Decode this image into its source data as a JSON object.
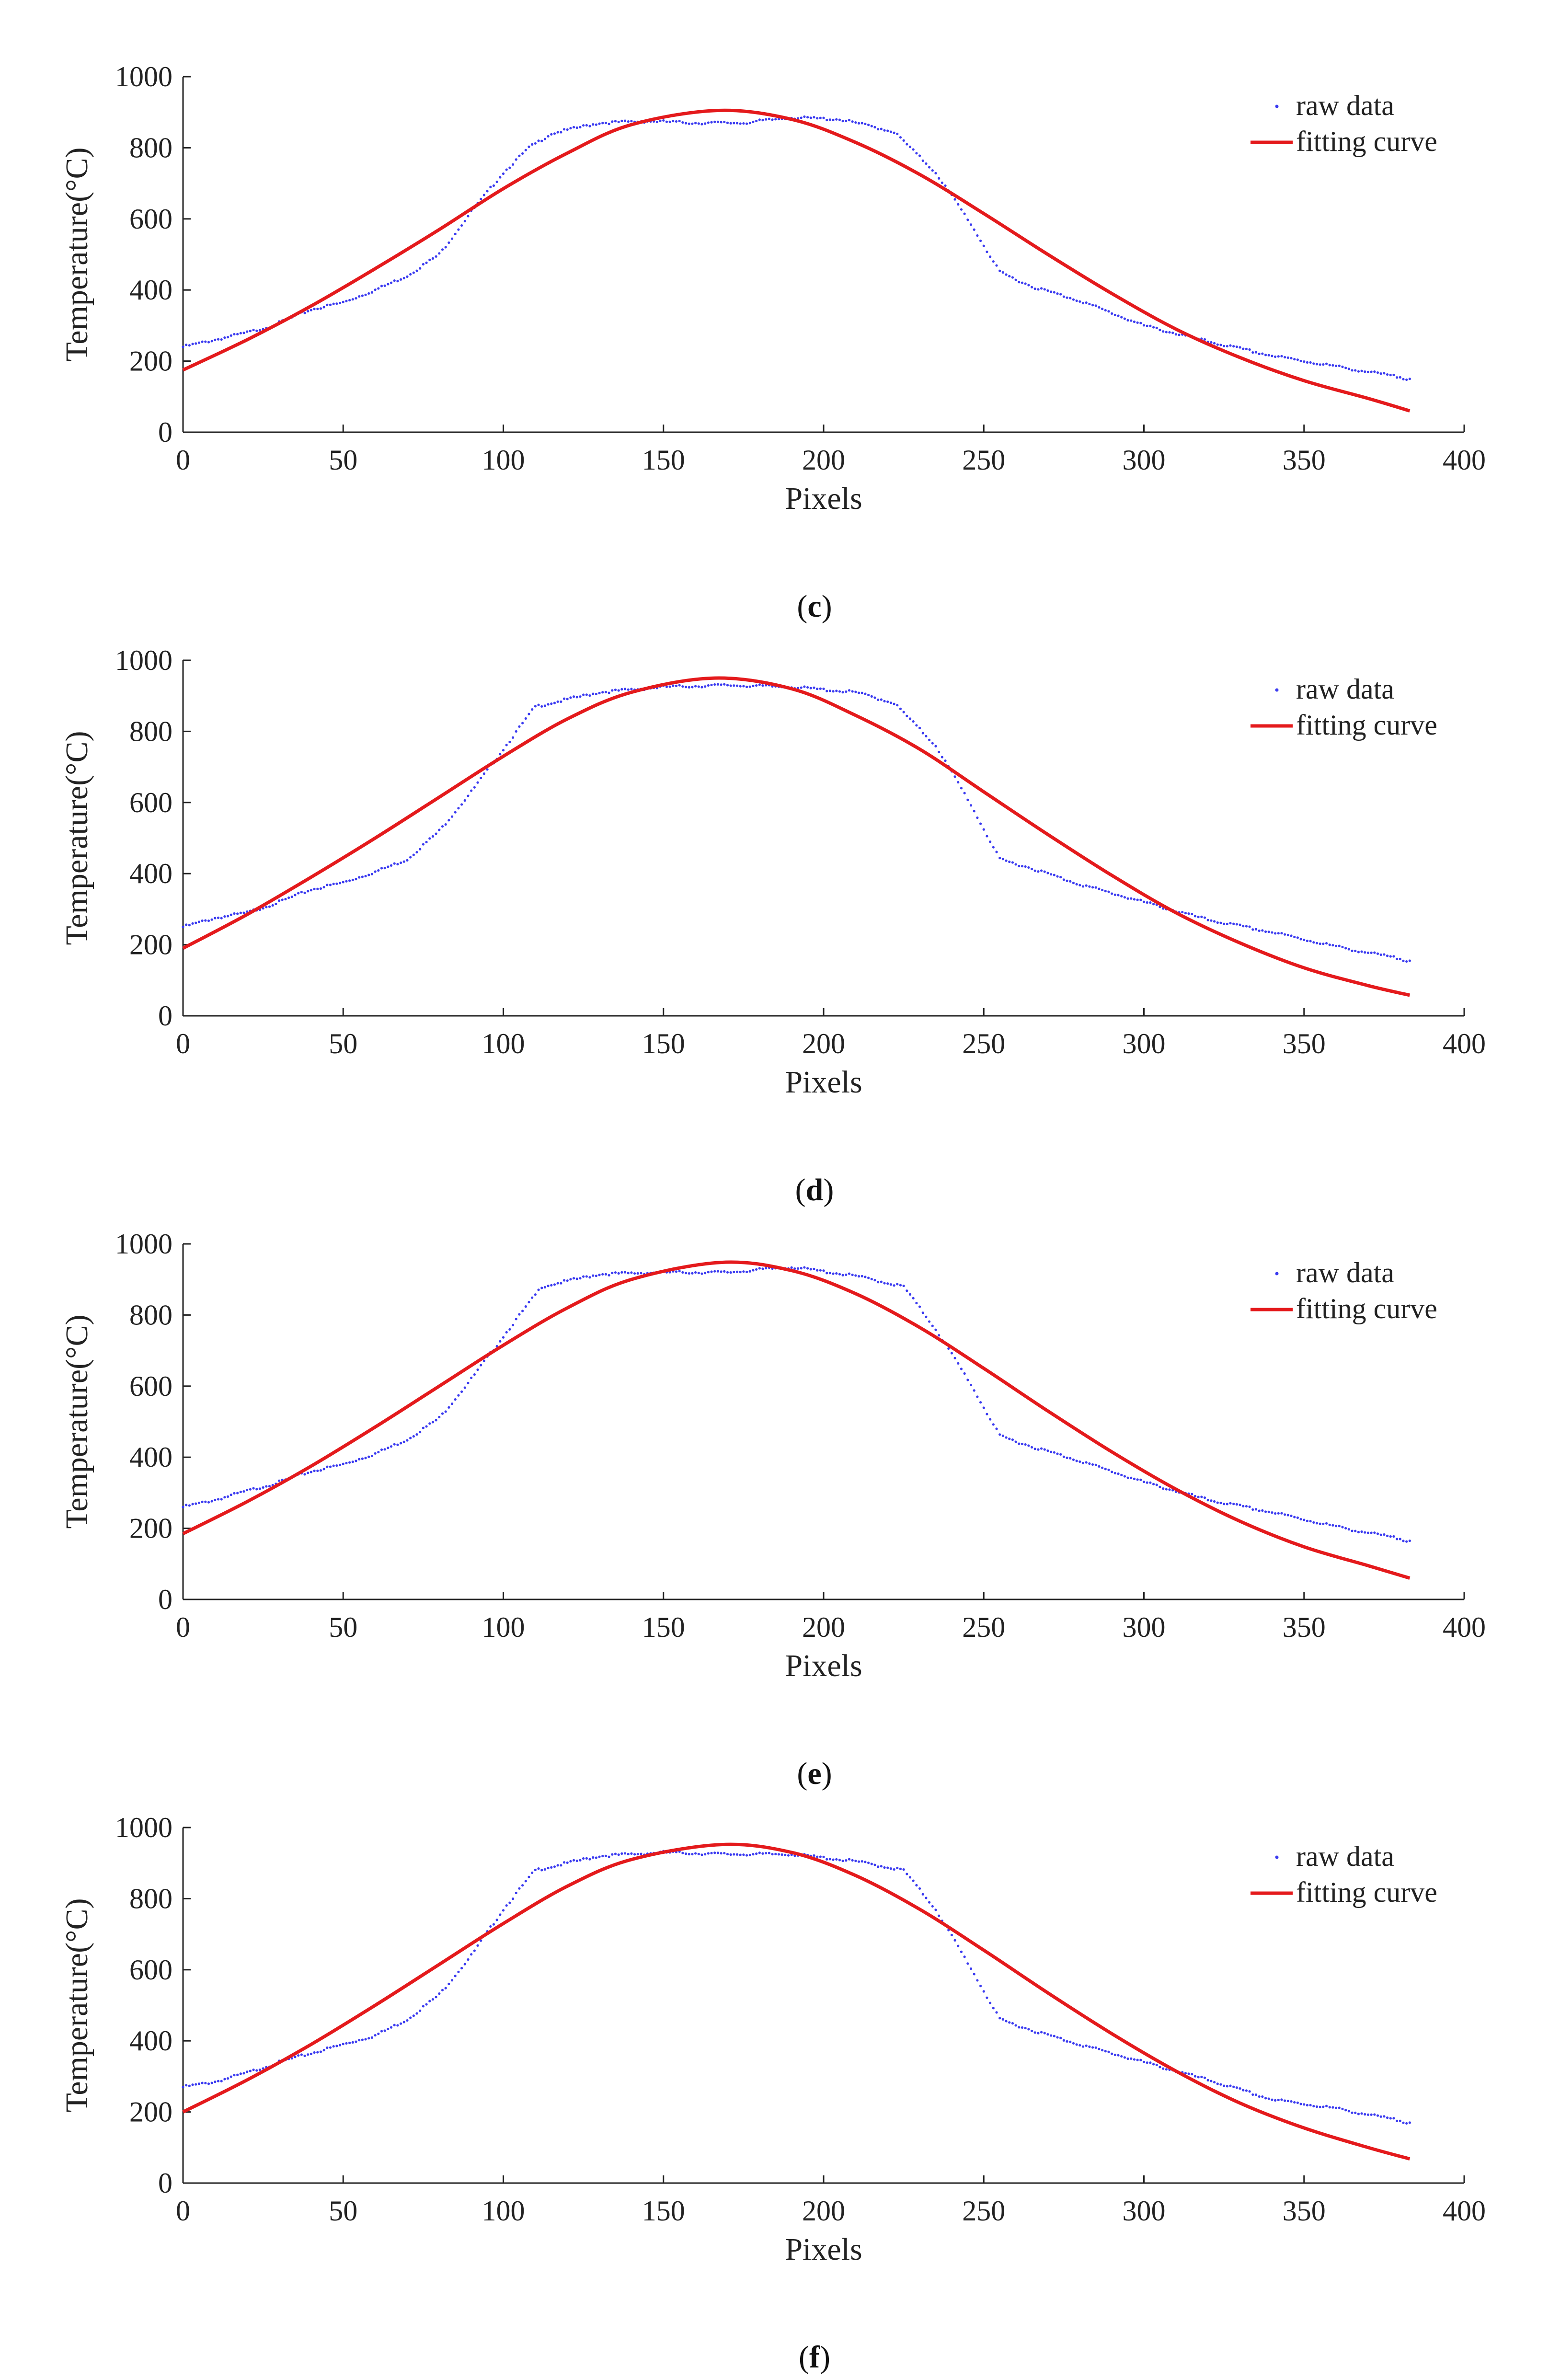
{
  "chart_data": [
    {
      "type": "scatter",
      "caption": "c",
      "xlabel": "Pixels",
      "ylabel": "Temperature(°C)",
      "xlim": [
        0,
        400
      ],
      "ylim": [
        0,
        1000
      ],
      "xticks": [
        0,
        50,
        100,
        150,
        200,
        250,
        300,
        350,
        400
      ],
      "yticks": [
        0,
        200,
        400,
        600,
        800,
        1000
      ],
      "legend": {
        "position": "top-right",
        "entries": [
          "raw data",
          "fitting curve"
        ]
      },
      "series": [
        {
          "name": "raw data",
          "kind": "dots",
          "color": "#3a3af0",
          "x": [
            0,
            10,
            20,
            28,
            40,
            50,
            60,
            70,
            80,
            90,
            100,
            108,
            115,
            130,
            145,
            160,
            175,
            190,
            205,
            215,
            222,
            235,
            245,
            255,
            265,
            280,
            300,
            320,
            340,
            360,
            383
          ],
          "y": [
            240,
            260,
            280,
            300,
            345,
            365,
            400,
            440,
            500,
            620,
            730,
            800,
            840,
            870,
            875,
            870,
            870,
            885,
            880,
            860,
            845,
            730,
            600,
            450,
            410,
            370,
            300,
            255,
            215,
            185,
            150
          ]
        },
        {
          "name": "fitting curve",
          "kind": "line",
          "color": "#e41a1c",
          "x": [
            0,
            20,
            40,
            60,
            80,
            100,
            120,
            140,
            167,
            190,
            210,
            230,
            250,
            270,
            290,
            310,
            330,
            350,
            370,
            383
          ],
          "y": [
            175,
            260,
            355,
            460,
            570,
            685,
            785,
            865,
            905,
            880,
            815,
            725,
            615,
            500,
            390,
            290,
            210,
            145,
            95,
            60
          ]
        }
      ]
    },
    {
      "type": "scatter",
      "caption": "d",
      "xlabel": "Pixels",
      "ylabel": "Temperature(°C)",
      "xlim": [
        0,
        400
      ],
      "ylim": [
        0,
        1000
      ],
      "xticks": [
        0,
        50,
        100,
        150,
        200,
        250,
        300,
        350,
        400
      ],
      "yticks": [
        0,
        200,
        400,
        600,
        800,
        1000
      ],
      "legend": {
        "position": "top-right",
        "entries": [
          "raw data",
          "fitting curve"
        ]
      },
      "series": [
        {
          "name": "raw data",
          "kind": "dots",
          "color": "#3a3af0",
          "x": [
            0,
            10,
            20,
            30,
            40,
            50,
            60,
            70,
            80,
            90,
            100,
            110,
            130,
            150,
            170,
            190,
            210,
            222,
            235,
            245,
            255,
            265,
            280,
            300,
            320,
            340,
            360,
            383
          ],
          "y": [
            250,
            275,
            290,
            320,
            355,
            375,
            405,
            440,
            520,
            630,
            750,
            870,
            910,
            925,
            930,
            925,
            910,
            880,
            760,
            610,
            440,
            415,
            370,
            320,
            270,
            235,
            195,
            155
          ]
        },
        {
          "name": "fitting curve",
          "kind": "line",
          "color": "#e41a1c",
          "x": [
            0,
            20,
            40,
            60,
            80,
            100,
            120,
            140,
            166,
            190,
            210,
            230,
            250,
            270,
            290,
            310,
            330,
            350,
            370,
            383
          ],
          "y": [
            190,
            285,
            390,
            500,
            615,
            730,
            835,
            910,
            950,
            920,
            845,
            750,
            630,
            510,
            395,
            290,
            205,
            135,
            85,
            58
          ]
        }
      ]
    },
    {
      "type": "scatter",
      "caption": "e",
      "xlabel": "Pixels",
      "ylabel": "Temperature(°C)",
      "xlim": [
        0,
        400
      ],
      "ylim": [
        0,
        1000
      ],
      "xticks": [
        0,
        50,
        100,
        150,
        200,
        250,
        300,
        350,
        400
      ],
      "yticks": [
        0,
        200,
        400,
        600,
        800,
        1000
      ],
      "legend": {
        "position": "top-right",
        "entries": [
          "raw data",
          "fitting curve"
        ]
      },
      "series": [
        {
          "name": "raw data",
          "kind": "dots",
          "color": "#3a3af0",
          "x": [
            0,
            10,
            20,
            30,
            40,
            50,
            60,
            70,
            80,
            90,
            100,
            112,
            130,
            150,
            170,
            190,
            210,
            225,
            235,
            245,
            255,
            265,
            280,
            300,
            320,
            340,
            360,
            383
          ],
          "y": [
            260,
            280,
            305,
            330,
            360,
            380,
            410,
            450,
            510,
            620,
            740,
            880,
            915,
            920,
            920,
            935,
            910,
            880,
            760,
            620,
            460,
            430,
            390,
            330,
            280,
            245,
            205,
            165
          ]
        },
        {
          "name": "fitting curve",
          "kind": "line",
          "color": "#e41a1c",
          "x": [
            0,
            20,
            40,
            60,
            80,
            100,
            120,
            140,
            168,
            190,
            210,
            230,
            250,
            270,
            290,
            310,
            330,
            350,
            370,
            383
          ],
          "y": [
            185,
            275,
            375,
            485,
            600,
            715,
            820,
            900,
            948,
            925,
            860,
            765,
            650,
            530,
            415,
            310,
            220,
            148,
            95,
            60
          ]
        }
      ]
    },
    {
      "type": "scatter",
      "caption": "f",
      "xlabel": "Pixels",
      "ylabel": "Temperature(°C)",
      "xlim": [
        0,
        400
      ],
      "ylim": [
        0,
        1000
      ],
      "xticks": [
        0,
        50,
        100,
        150,
        200,
        250,
        300,
        350,
        400
      ],
      "yticks": [
        0,
        200,
        400,
        600,
        800,
        1000
      ],
      "legend": {
        "position": "top-right",
        "entries": [
          "raw data",
          "fitting curve"
        ]
      },
      "series": [
        {
          "name": "raw data",
          "kind": "dots",
          "color": "#3a3af0",
          "x": [
            0,
            10,
            20,
            30,
            40,
            50,
            60,
            70,
            80,
            90,
            100,
            110,
            130,
            150,
            170,
            190,
            210,
            225,
            235,
            245,
            255,
            265,
            280,
            300,
            320,
            340,
            360,
            383
          ],
          "y": [
            270,
            285,
            310,
            340,
            365,
            390,
            415,
            460,
            530,
            640,
            770,
            880,
            920,
            930,
            925,
            925,
            905,
            880,
            770,
            620,
            460,
            430,
            390,
            340,
            290,
            235,
            210,
            170
          ]
        },
        {
          "name": "fitting curve",
          "kind": "line",
          "color": "#e41a1c",
          "x": [
            0,
            20,
            40,
            60,
            80,
            100,
            120,
            140,
            168,
            190,
            210,
            230,
            250,
            270,
            290,
            310,
            330,
            350,
            370,
            383
          ],
          "y": [
            200,
            290,
            390,
            500,
            615,
            730,
            835,
            910,
            952,
            930,
            865,
            770,
            655,
            535,
            420,
            315,
            225,
            155,
            100,
            68
          ]
        }
      ]
    }
  ]
}
